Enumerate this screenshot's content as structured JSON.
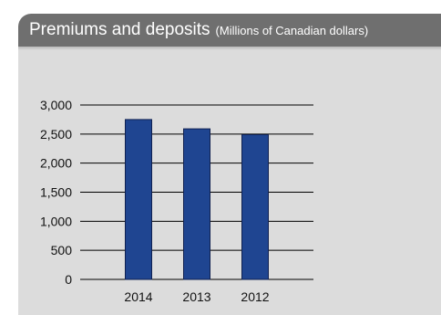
{
  "panel": {
    "title": "Premiums and deposits",
    "subtitle": "(Millions of Canadian dollars)"
  },
  "colors": {
    "header_bg": "#6f6f6f",
    "panel_bg": "#dcdcdc",
    "bar_fill": "#1f4591",
    "bar_stroke": "#0f2050",
    "grid": "#000000"
  },
  "chart_data": {
    "type": "bar",
    "categories": [
      "2014",
      "2013",
      "2012"
    ],
    "values": [
      2750,
      2590,
      2490
    ],
    "ylim": [
      0,
      3000
    ],
    "yticks": [
      0,
      500,
      1000,
      1500,
      2000,
      2500,
      3000
    ],
    "ytick_labels": [
      "0",
      "500",
      "1,000",
      "1,500",
      "2,000",
      "2,500",
      "3,000"
    ],
    "grid": true,
    "legend": "none"
  }
}
